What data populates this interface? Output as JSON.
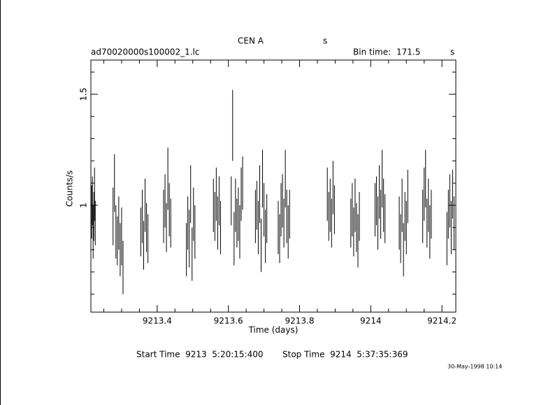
{
  "chart_data": {
    "type": "errorbar",
    "title": "CEN A",
    "title_unit": "s",
    "file_label": "ad70020000s100002_1.lc",
    "bin_time_label": "Bin time:",
    "bin_time": 171.5,
    "bin_time_unit": "s",
    "y_label": "Counts/s",
    "x_label": "Time (days)",
    "start_time": "Start Time  9213  5:20:15:400",
    "stop_time": "Stop Time  9214  5:37:35:369",
    "date_stamp": "30-May-1998 10:14",
    "color": "#000000",
    "xlim": [
      9213.2137,
      9214.239
    ],
    "ylim": [
      0.519,
      1.654
    ],
    "xticks": [
      9213.4,
      9213.6,
      9213.8,
      9214,
      9214.2
    ],
    "yticks": [
      1,
      1.5
    ],
    "xminor_ticks": [
      9213.25,
      9213.3,
      9213.35,
      9213.45,
      9213.5,
      9213.55,
      9213.65,
      9213.7,
      9213.75,
      9213.85,
      9213.9,
      9213.95,
      9214.05,
      9214.1,
      9214.15
    ],
    "yminor_ticks": [
      0.6,
      0.7,
      0.8,
      0.9,
      1.1,
      1.2,
      1.3,
      1.4,
      1.6
    ],
    "x": [
      9213.216,
      9213.218,
      9213.22,
      9213.222,
      9213.224,
      9213.226,
      9213.276,
      9213.28,
      9213.284,
      9213.288,
      9213.292,
      9213.296,
      9213.3,
      9213.304,
      9213.354,
      9213.358,
      9213.362,
      9213.366,
      9213.37,
      9213.374,
      9213.418,
      9213.422,
      9213.426,
      9213.43,
      9213.434,
      9213.438,
      9213.482,
      9213.486,
      9213.49,
      9213.494,
      9213.498,
      9213.502,
      9213.506,
      9213.558,
      9213.562,
      9213.566,
      9213.57,
      9213.574,
      9213.578,
      9213.608,
      9213.612,
      9213.616,
      9213.62,
      9213.624,
      9213.628,
      9213.632,
      9213.636,
      9213.64,
      9213.676,
      9213.68,
      9213.684,
      9213.688,
      9213.692,
      9213.696,
      9213.7,
      9213.704,
      9213.708,
      9213.74,
      9213.744,
      9213.748,
      9213.752,
      9213.756,
      9213.76,
      9213.764,
      9213.768,
      9213.772,
      9213.878,
      9213.882,
      9213.886,
      9213.89,
      9213.894,
      9213.898,
      9213.944,
      9213.948,
      9213.952,
      9213.956,
      9213.96,
      9213.964,
      9213.968,
      9214.012,
      9214.016,
      9214.02,
      9214.024,
      9214.028,
      9214.032,
      9214.036,
      9214.04,
      9214.08,
      9214.084,
      9214.088,
      9214.092,
      9214.096,
      9214.1,
      9214.104,
      9214.146,
      9214.15,
      9214.154,
      9214.158,
      9214.162,
      9214.166,
      9214.17,
      9214.214,
      9214.218,
      9214.222,
      9214.226,
      9214.23,
      9214.234
    ],
    "series": [
      {
        "values": [
          0.97,
          1.02,
          0.88,
          0.95,
          1.05,
          0.92,
          0.95,
          1.1,
          0.88,
          0.84,
          0.92,
          0.8,
          0.86,
          0.72,
          0.88,
          0.95,
          0.82,
          1.0,
          0.9,
          0.85,
          0.95,
          1.02,
          0.9,
          1.12,
          0.98,
          0.92,
          0.8,
          0.92,
          0.85,
          1.05,
          0.78,
          0.96,
          0.88,
          1.0,
          0.95,
          1.05,
          0.92,
          1.02,
          0.9,
          1.02,
          1.36,
          0.85,
          1.0,
          0.92,
          0.96,
          0.88,
          1.05,
          1.1,
          0.95,
          1.0,
          0.9,
          1.05,
          0.82,
          1.12,
          0.98,
          0.86,
          0.94,
          0.9,
          0.85,
          0.98,
          1.02,
          0.92,
          1.12,
          0.95,
          0.88,
          0.96,
          1.05,
          0.95,
          1.0,
          0.92,
          1.08,
          0.98,
          0.92,
          0.98,
          0.88,
          1.0,
          0.9,
          0.84,
          0.95,
          0.98,
          1.02,
          0.92,
          1.06,
          0.96,
          1.12,
          1.0,
          0.94,
          0.92,
          0.85,
          1.0,
          0.8,
          0.95,
          0.9,
          1.04,
          0.95,
          1.05,
          1.12,
          0.92,
          1.0,
          0.88,
          0.96,
          0.85,
          0.96,
          1.02,
          0.9,
          1.05,
          0.92
        ],
        "errors": [
          0.12,
          0.11,
          0.12,
          0.11,
          0.12,
          0.1,
          0.13,
          0.13,
          0.12,
          0.11,
          0.12,
          0.12,
          0.13,
          0.12,
          0.11,
          0.12,
          0.11,
          0.12,
          0.11,
          0.11,
          0.12,
          0.12,
          0.11,
          0.14,
          0.12,
          0.11,
          0.12,
          0.12,
          0.13,
          0.13,
          0.12,
          0.12,
          0.12,
          0.12,
          0.11,
          0.12,
          0.12,
          0.11,
          0.12,
          0.11,
          0.16,
          0.12,
          0.12,
          0.11,
          0.12,
          0.12,
          0.12,
          0.12,
          0.12,
          0.11,
          0.12,
          0.13,
          0.12,
          0.13,
          0.12,
          0.12,
          0.11,
          0.12,
          0.11,
          0.12,
          0.12,
          0.11,
          0.13,
          0.12,
          0.12,
          0.11,
          0.12,
          0.11,
          0.12,
          0.11,
          0.12,
          0.11,
          0.11,
          0.12,
          0.11,
          0.12,
          0.11,
          0.12,
          0.11,
          0.12,
          0.11,
          0.12,
          0.12,
          0.11,
          0.13,
          0.12,
          0.11,
          0.12,
          0.11,
          0.12,
          0.12,
          0.11,
          0.12,
          0.12,
          0.12,
          0.12,
          0.13,
          0.11,
          0.12,
          0.12,
          0.11,
          0.12,
          0.11,
          0.12,
          0.12,
          0.11,
          0.12
        ]
      }
    ]
  }
}
